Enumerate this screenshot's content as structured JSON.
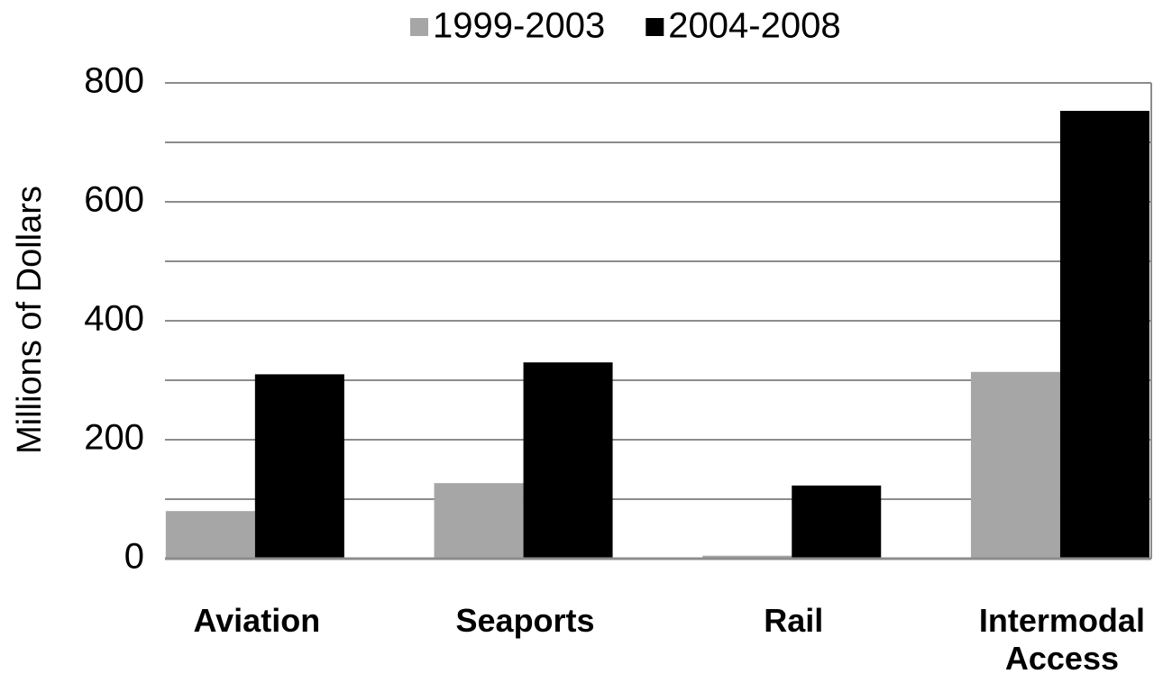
{
  "chart_data": {
    "type": "bar",
    "ylabel": "Millions of Dollars",
    "categories": [
      "Aviation",
      "Seaports",
      "Rail",
      "Intermodal Access"
    ],
    "series": [
      {
        "name": "1999-2003",
        "color": "#a6a6a6",
        "values": [
          80,
          127,
          5,
          314
        ]
      },
      {
        "name": "2004-2008",
        "color": "#000000",
        "values": [
          310,
          330,
          123,
          753
        ]
      }
    ],
    "ylim": [
      0,
      800
    ],
    "yticks": [
      0,
      200,
      400,
      600,
      800
    ],
    "minor_yticks": [
      100,
      300,
      500,
      700
    ],
    "grid": true,
    "legend": "top"
  }
}
